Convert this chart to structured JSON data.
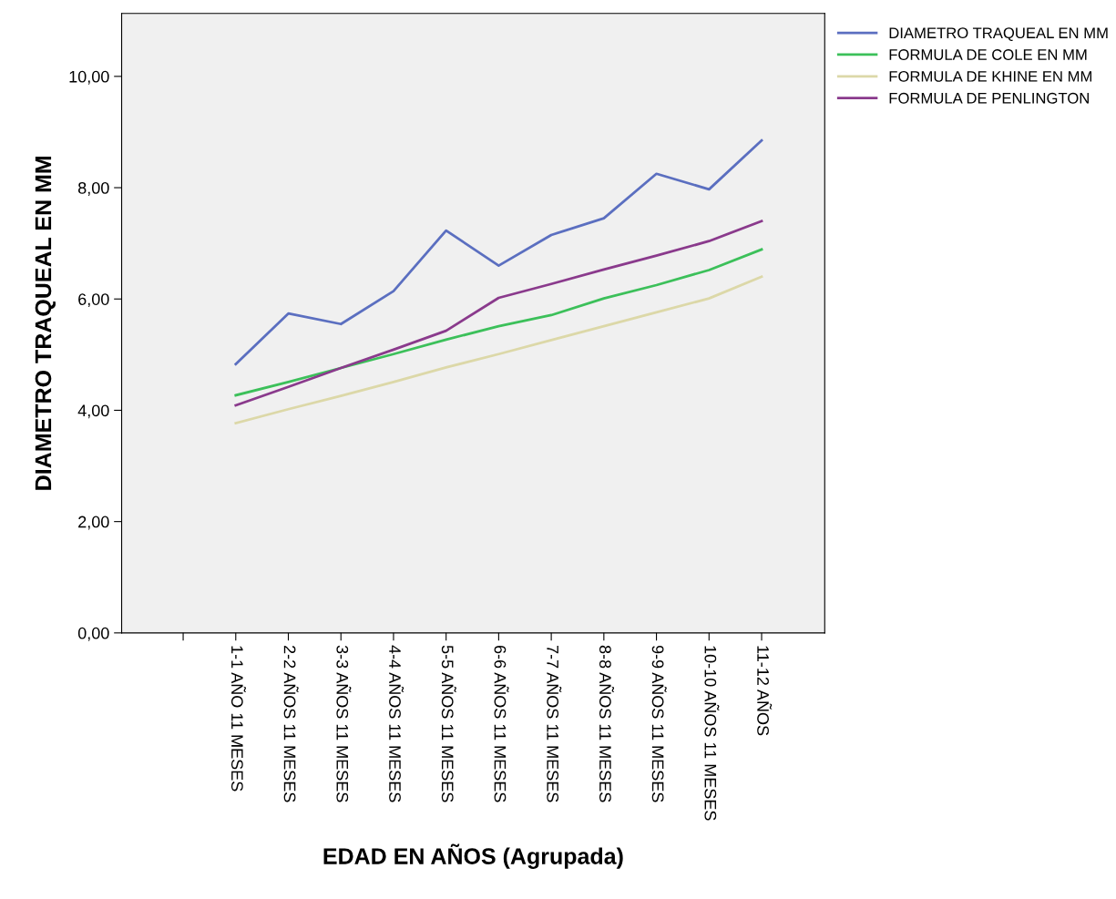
{
  "chart_data": {
    "type": "line",
    "xlabel": "EDAD EN AÑOS (Agrupada)",
    "ylabel": "DIAMETRO TRAQUEAL EN MM",
    "categories": [
      null,
      "1-1 AÑO 11 MESES",
      "2-2 AÑOS 11 MESES",
      "3-3 AÑOS 11 MESES",
      "4-4 AÑOS 11 MESES",
      "5-5 AÑOS 11 MESES",
      "6-6 AÑOS 11 MESES",
      "7-7 AÑOS 11 MESES",
      "8-8 AÑOS 11 MESES",
      "9-9 AÑOS 11 MESES",
      "10-10 AÑOS 11 MESES",
      "11-12 AÑOS"
    ],
    "series": [
      {
        "name": "DIAMETRO TRAQUEAL EN MM",
        "color": "#5b6fc0",
        "values": [
          null,
          4.83,
          5.74,
          5.55,
          6.14,
          7.23,
          6.6,
          7.15,
          7.45,
          8.25,
          7.97,
          8.85
        ]
      },
      {
        "name": "FORMULA DE COLE EN MM",
        "color": "#3cc05a",
        "values": [
          null,
          4.27,
          4.51,
          4.76,
          5.01,
          5.27,
          5.51,
          5.71,
          6.01,
          6.25,
          6.52,
          6.89
        ]
      },
      {
        "name": "FORMULA DE KHINE EN MM",
        "color": "#dcd8a8",
        "values": [
          null,
          3.77,
          4.02,
          4.26,
          4.51,
          4.77,
          5.01,
          5.26,
          5.51,
          5.76,
          6.01,
          6.4
        ]
      },
      {
        "name": "FORMULA DE PENLINGTON",
        "color": "#8a3a8c",
        "values": [
          null,
          4.09,
          4.42,
          4.76,
          5.09,
          5.43,
          6.02,
          6.27,
          6.53,
          6.78,
          7.04,
          7.4
        ]
      }
    ],
    "ylim": [
      0,
      11.13
    ],
    "yticks": [
      {
        "value": 0,
        "label": "0,00"
      },
      {
        "value": 2,
        "label": "2,00"
      },
      {
        "value": 4,
        "label": "4,00"
      },
      {
        "value": 6,
        "label": "6,00"
      },
      {
        "value": 8,
        "label": "8,00"
      },
      {
        "value": 10,
        "label": "10,00"
      }
    ],
    "grid": false,
    "legend": "right",
    "marker": "none",
    "line_style": "solid"
  }
}
